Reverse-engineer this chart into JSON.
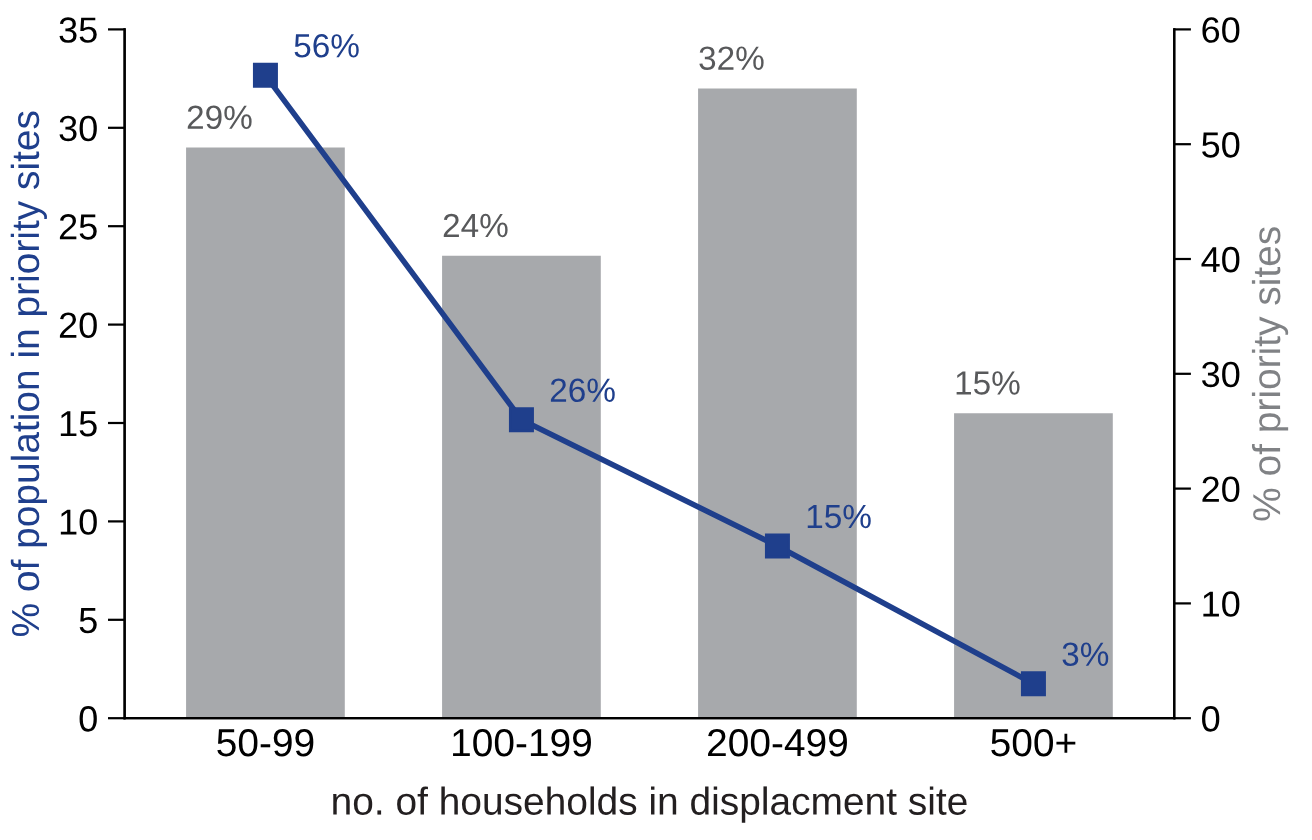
{
  "chart_data": {
    "type": "bar",
    "xlabel": "no. of households in displacment site",
    "ylabel": "% of population in priority sites",
    "y2label": "% of priority sites",
    "categories": [
      "50-99",
      "100-199",
      "200-499",
      "500+"
    ],
    "series": [
      {
        "color": "#a7a9ac",
        "values": [
          29,
          23.5,
          32,
          15.5
        ],
        "value_labels": [
          "29%",
          "24%",
          "32%",
          "15%"
        ]
      },
      {
        "type": "line",
        "axis": "y2",
        "color": "#1f3f8c",
        "values": [
          56,
          26,
          15,
          3
        ],
        "value_labels": [
          "56%",
          "26%",
          "15%",
          "3%"
        ],
        "marker": "square",
        "line_style": "solid"
      }
    ],
    "ylim": [
      0,
      35
    ],
    "yticks": [
      0,
      5,
      10,
      15,
      20,
      25,
      30,
      35
    ],
    "y2lim": [
      0,
      60
    ],
    "y2ticks": [
      0,
      10,
      20,
      30,
      40,
      50,
      60
    ],
    "grid": false,
    "legend": false
  }
}
